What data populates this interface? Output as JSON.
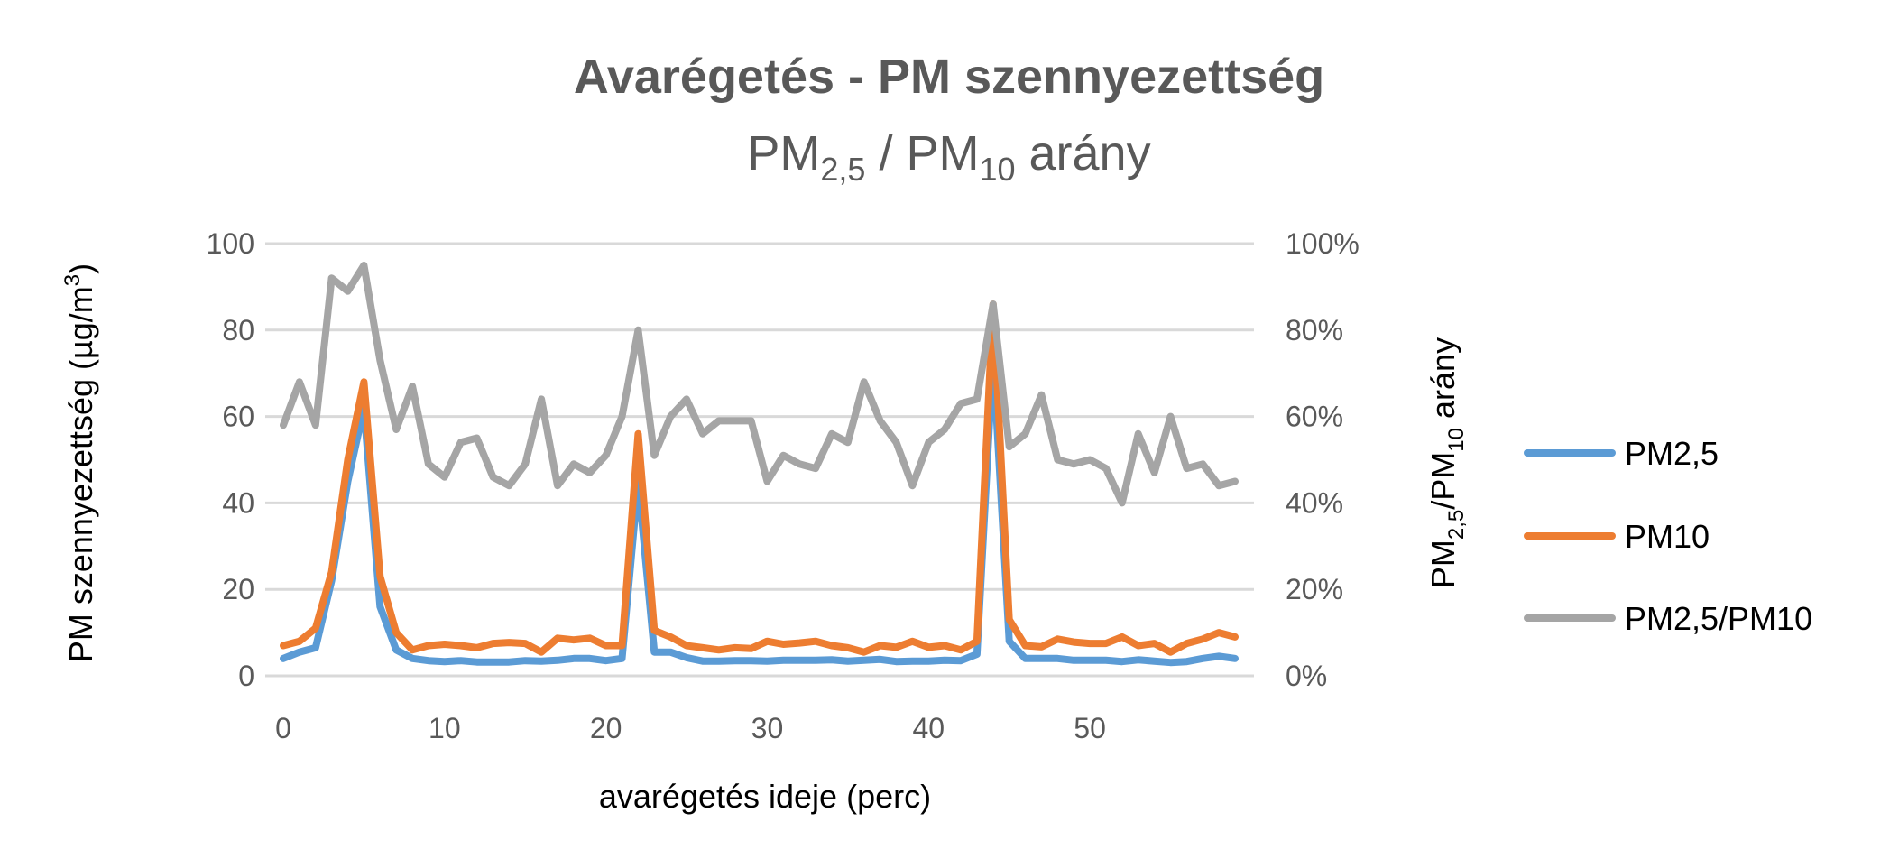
{
  "chart_data": {
    "type": "line",
    "title": "Avarégetés - PM szennyezettség",
    "subtitle": {
      "prefix": "PM",
      "sub1": "2,5",
      "mid": " / PM",
      "sub2": "10",
      "suffix": " arány"
    },
    "xlabel": "avarégetés ideje (perc)",
    "ylabel": {
      "text": "PM szennyezettség (µg/m",
      "sup": "3",
      "close": ")"
    },
    "y2label": {
      "prefix": "PM",
      "sub1": "2,5",
      "mid": "/PM",
      "sub2": "10",
      "suffix": " arány"
    },
    "xlim": [
      0,
      59
    ],
    "ylim": [
      0,
      100
    ],
    "y2lim": [
      0,
      1
    ],
    "xticks": [
      "0",
      "10",
      "20",
      "30",
      "40",
      "50"
    ],
    "xtick_values": [
      0,
      10,
      20,
      30,
      40,
      50
    ],
    "yticks": [
      "0",
      "20",
      "40",
      "60",
      "80",
      "100"
    ],
    "y2ticks": [
      "0%",
      "20%",
      "40%",
      "60%",
      "80%",
      "100%"
    ],
    "grid": true,
    "legend_position": "right",
    "x": [
      0,
      1,
      2,
      3,
      4,
      5,
      6,
      7,
      8,
      9,
      10,
      11,
      12,
      13,
      14,
      15,
      16,
      17,
      18,
      19,
      20,
      21,
      22,
      23,
      24,
      25,
      26,
      27,
      28,
      29,
      30,
      31,
      32,
      33,
      34,
      35,
      36,
      37,
      38,
      39,
      40,
      41,
      42,
      43,
      44,
      45,
      46,
      47,
      48,
      49,
      50,
      51,
      52,
      53,
      54,
      55,
      56,
      57,
      58,
      59
    ],
    "series": [
      {
        "name": "PM2,5",
        "axis": "left",
        "color": "#5B9BD5",
        "values": [
          4,
          5.5,
          6.5,
          22,
          45,
          62,
          16,
          6,
          4,
          3.5,
          3.3,
          3.5,
          3.2,
          3.2,
          3.2,
          3.5,
          3.4,
          3.6,
          4,
          4,
          3.5,
          4,
          45,
          5.5,
          5.5,
          4.2,
          3.4,
          3.4,
          3.5,
          3.5,
          3.4,
          3.6,
          3.6,
          3.6,
          3.7,
          3.4,
          3.6,
          3.8,
          3.3,
          3.4,
          3.4,
          3.6,
          3.5,
          5,
          74,
          8,
          4,
          4,
          4,
          3.6,
          3.6,
          3.6,
          3.3,
          3.7,
          3.4,
          3.1,
          3.3,
          4,
          4.5,
          4
        ]
      },
      {
        "name": "PM10",
        "axis": "left",
        "color": "#ED7D31",
        "values": [
          7,
          8,
          11,
          24,
          50,
          68,
          23,
          10,
          6,
          7,
          7.3,
          7,
          6.5,
          7.5,
          7.7,
          7.5,
          5.5,
          8.7,
          8.3,
          8.7,
          7,
          7,
          56,
          10.5,
          9,
          7,
          6.5,
          6,
          6.5,
          6.3,
          8,
          7.3,
          7.6,
          8,
          7,
          6.5,
          5.5,
          7,
          6.6,
          8,
          6.6,
          7,
          6,
          8,
          86,
          13,
          7,
          6.7,
          8.5,
          7.8,
          7.5,
          7.5,
          9,
          7,
          7.5,
          5.5,
          7.5,
          8.5,
          10,
          9
        ]
      },
      {
        "name": "PM2,5/PM10",
        "axis": "right",
        "color": "#A5A5A5",
        "values": [
          0.58,
          0.68,
          0.58,
          0.92,
          0.89,
          0.95,
          0.73,
          0.57,
          0.67,
          0.49,
          0.46,
          0.54,
          0.55,
          0.46,
          0.44,
          0.49,
          0.64,
          0.44,
          0.49,
          0.47,
          0.51,
          0.6,
          0.8,
          0.51,
          0.6,
          0.64,
          0.56,
          0.59,
          0.59,
          0.59,
          0.45,
          0.51,
          0.49,
          0.48,
          0.56,
          0.54,
          0.68,
          0.59,
          0.54,
          0.44,
          0.54,
          0.57,
          0.63,
          0.64,
          0.86,
          0.53,
          0.56,
          0.65,
          0.5,
          0.49,
          0.5,
          0.48,
          0.4,
          0.56,
          0.47,
          0.6,
          0.48,
          0.49,
          0.44,
          0.45
        ]
      }
    ],
    "gridline_color": "#D9D9D9"
  }
}
